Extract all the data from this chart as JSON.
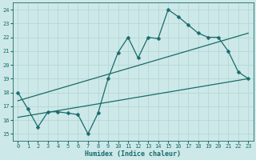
{
  "xlabel": "Humidex (Indice chaleur)",
  "bg_color": "#cde8e8",
  "line_color": "#1a6b6b",
  "xlim": [
    -0.5,
    23.5
  ],
  "ylim": [
    14.5,
    24.5
  ],
  "xticks": [
    0,
    1,
    2,
    3,
    4,
    5,
    6,
    7,
    8,
    9,
    10,
    11,
    12,
    13,
    14,
    15,
    16,
    17,
    18,
    19,
    20,
    21,
    22,
    23
  ],
  "yticks": [
    15,
    16,
    17,
    18,
    19,
    20,
    21,
    22,
    23,
    24
  ],
  "main_x": [
    0,
    1,
    2,
    3,
    4,
    5,
    6,
    7,
    8,
    9,
    10,
    11,
    12,
    13,
    14,
    15,
    16,
    17,
    18,
    19,
    20,
    21,
    22,
    23
  ],
  "main_y": [
    18.0,
    16.8,
    15.5,
    16.6,
    16.6,
    16.5,
    16.4,
    15.0,
    16.5,
    19.0,
    20.9,
    22.0,
    20.5,
    22.0,
    21.9,
    24.0,
    23.5,
    22.9,
    22.3,
    22.0,
    22.0,
    21.0,
    19.5,
    19.0
  ],
  "trend1_x": [
    0,
    23
  ],
  "trend1_y": [
    17.4,
    22.3
  ],
  "trend2_x": [
    0,
    23
  ],
  "trend2_y": [
    16.2,
    19.0
  ],
  "grid_color": "#b0d4d4",
  "markersize": 2.5
}
